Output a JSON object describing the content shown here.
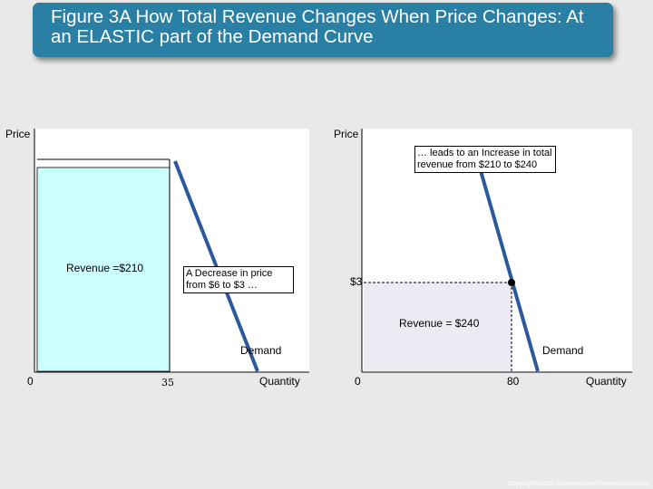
{
  "title": "Figure 3A How Total Revenue Changes When Price Changes: At an ELASTIC part of the Demand Curve",
  "colors": {
    "banner": "#2a80a4",
    "demand_line": "#2b5a9c",
    "left_revenue_fill": "#ccffff",
    "right_revenue_fill": "#eeeaf4"
  },
  "left_panel": {
    "y_axis_label": "Price",
    "x_axis_label": "Quantity",
    "origin_label": "0",
    "quantity_tick": "35",
    "revenue_label": "Revenue =$210",
    "callout": "A Decrease in price from $6 to $3 …",
    "demand_label": "Demand"
  },
  "right_panel": {
    "y_axis_label": "Price",
    "x_axis_label": "Quantity",
    "origin_label": "0",
    "quantity_tick": "80",
    "price_tick": "$3",
    "callout": "… leads to an Increase in total revenue from $210 to $240",
    "revenue_label": "Revenue = $240",
    "demand_label": "Demand"
  },
  "footer": {
    "copyright": "Copyright©2003 Southwestern/Thomson Learning"
  }
}
